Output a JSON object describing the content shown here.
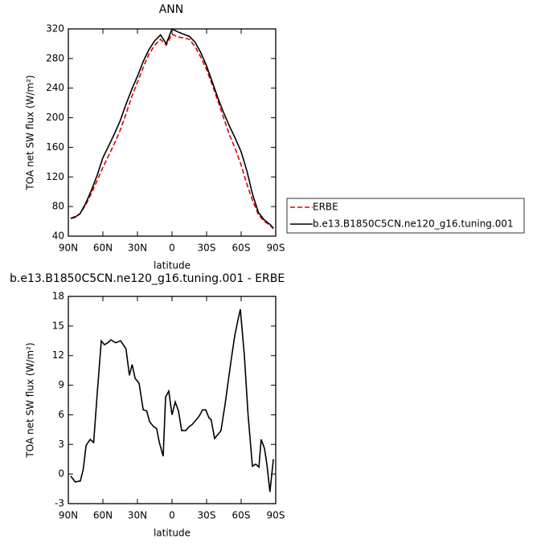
{
  "chart_data": [
    {
      "type": "line",
      "title": "ANN",
      "xlabel": "latitude",
      "ylabel": "TOA net SW flux (W/m²)",
      "x": [
        88,
        85,
        80,
        75,
        70,
        65,
        60,
        55,
        50,
        45,
        40,
        35,
        30,
        25,
        20,
        15,
        10,
        5,
        0,
        -5,
        -10,
        -15,
        -20,
        -25,
        -30,
        -35,
        -40,
        -45,
        -50,
        -55,
        -60,
        -65,
        -70,
        -75,
        -80,
        -85,
        -88
      ],
      "series": [
        {
          "name": "ERBE",
          "color": "#dd0000",
          "dash": true,
          "values": [
            64,
            66,
            70,
            82,
            98,
            115,
            133,
            149,
            165,
            183,
            205,
            228,
            248,
            268,
            286,
            298,
            306,
            298,
            313,
            309,
            308,
            306,
            296,
            282,
            265,
            244,
            222,
            199,
            176,
            158,
            136,
            110,
            88,
            69,
            60,
            55,
            50
          ]
        },
        {
          "name": "b.e13.B1850C5CN.ne120_g16.tuning.001",
          "color": "#000000",
          "dash": false,
          "values": [
            64,
            65,
            70,
            84,
            102,
            122,
            146,
            162,
            178,
            196,
            218,
            238,
            256,
            276,
            292,
            304,
            312,
            300,
            320,
            316,
            313,
            310,
            302,
            288,
            270,
            248,
            226,
            206,
            188,
            172,
            154,
            128,
            96,
            72,
            62,
            56,
            51
          ]
        }
      ],
      "xlim": [
        90,
        -90
      ],
      "xticks": [
        {
          "value": 90,
          "label": "90N"
        },
        {
          "value": 60,
          "label": "60N"
        },
        {
          "value": 30,
          "label": "30N"
        },
        0,
        {
          "value": -30,
          "label": "30S"
        },
        {
          "value": -60,
          "label": "60S"
        },
        {
          "value": -90,
          "label": "90S"
        }
      ],
      "ylim": [
        40,
        320
      ],
      "yticks": [
        40,
        80,
        120,
        160,
        200,
        240,
        280,
        320
      ],
      "legend": "right"
    },
    {
      "type": "line",
      "title": "b.e13.B1850C5CN.ne120_g16.tuning.001 - ERBE",
      "xlabel": "latitude",
      "ylabel": "TOA net SW flux (W/m²)",
      "x": [
        88,
        84,
        79.5,
        77,
        74.6,
        71,
        68,
        65,
        61.4,
        58.6,
        55.8,
        53,
        49,
        44.6,
        40,
        37,
        34.6,
        32,
        28.6,
        25,
        22,
        19.5,
        16,
        13.3,
        11,
        7.7,
        5.6,
        2.8,
        0,
        -2.8,
        -5.6,
        -8.4,
        -11.9,
        -14.7,
        -17.4,
        -21,
        -23.7,
        -26.5,
        -29.3,
        -32,
        -34,
        -37,
        -39.8,
        -42.5,
        -46,
        -48.8,
        -51.6,
        -54.4,
        -57.2,
        -59.3,
        -62.8,
        -66,
        -69.8,
        -72.6,
        -75.4,
        -77.4,
        -80.2,
        -82.3,
        -85,
        -88
      ],
      "series": [
        {
          "color": "#000000",
          "dash": false,
          "values": [
            -0.2,
            -0.8,
            -0.7,
            0.5,
            2.9,
            3.5,
            3.2,
            8,
            13.5,
            13.1,
            13.3,
            13.6,
            13.3,
            13.5,
            12.7,
            10,
            11.1,
            9.7,
            9.2,
            6.5,
            6.4,
            5.3,
            4.8,
            4.6,
            3.2,
            1.8,
            7.8,
            8.4,
            6,
            7.3,
            6.4,
            4.4,
            4.4,
            4.8,
            5,
            5.5,
            5.9,
            6.5,
            6.5,
            5.7,
            5.5,
            3.6,
            4,
            4.4,
            7,
            9.4,
            11.8,
            14,
            15.6,
            16.7,
            12,
            6,
            0.8,
            1,
            0.7,
            3.5,
            2.6,
            1,
            -1.8,
            1.5
          ]
        }
      ],
      "xlim": [
        90,
        -90
      ],
      "xticks": [
        {
          "value": 90,
          "label": "90N"
        },
        {
          "value": 60,
          "label": "60N"
        },
        {
          "value": 30,
          "label": "30N"
        },
        0,
        {
          "value": -30,
          "label": "30S"
        },
        {
          "value": -60,
          "label": "60S"
        },
        {
          "value": -90,
          "label": "90S"
        }
      ],
      "ylim": [
        -3,
        18
      ],
      "yticks": [
        -3,
        0,
        3,
        6,
        9,
        12,
        15,
        18
      ]
    }
  ]
}
